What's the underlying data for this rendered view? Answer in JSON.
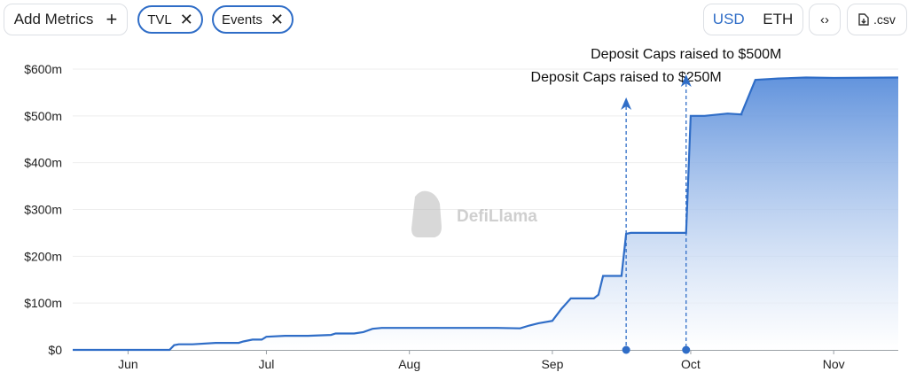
{
  "toolbar": {
    "add_metrics_label": "Add Metrics",
    "add_icon": "plus-icon",
    "chips": [
      {
        "label": "TVL",
        "remove_icon": "close-icon"
      },
      {
        "label": "Events",
        "remove_icon": "close-icon"
      }
    ],
    "currency": {
      "options": [
        "USD",
        "ETH"
      ],
      "selected": "USD"
    },
    "embed_icon": "code-icon",
    "csv_label": ".csv",
    "csv_icon": "download-file-icon"
  },
  "watermark": "DefiLlama",
  "colors": {
    "accent": "#2f6dc7",
    "line": "#2f6dc7",
    "area_top": "#5a8edb",
    "area_bottom": "#ffffff"
  },
  "chart_data": {
    "type": "area",
    "title": "",
    "xlabel": "",
    "ylabel": "",
    "x_ticks": [
      "Jun",
      "Jul",
      "Aug",
      "Sep",
      "Oct",
      "Nov"
    ],
    "y_ticks": [
      "$0",
      "$100m",
      "$200m",
      "$300m",
      "$400m",
      "$500m",
      "$600m"
    ],
    "ylim": [
      0,
      600
    ],
    "grid": true,
    "series": [
      {
        "x": [
          "2023-05-20",
          "2023-06-01",
          "2023-06-10",
          "2023-06-11",
          "2023-06-12",
          "2023-06-15",
          "2023-06-20",
          "2023-06-25",
          "2023-06-26",
          "2023-06-28",
          "2023-06-30",
          "2023-07-01",
          "2023-07-05",
          "2023-07-08",
          "2023-07-10",
          "2023-07-15",
          "2023-07-16",
          "2023-07-20",
          "2023-07-22",
          "2023-07-24",
          "2023-07-26",
          "2023-08-01",
          "2023-08-10",
          "2023-08-15",
          "2023-08-20",
          "2023-08-25",
          "2023-08-27",
          "2023-08-29",
          "2023-09-01",
          "2023-09-03",
          "2023-09-05",
          "2023-09-10",
          "2023-09-11",
          "2023-09-12",
          "2023-09-16",
          "2023-09-17",
          "2023-09-18",
          "2023-09-24",
          "2023-09-30",
          "2023-09-30",
          "2023-10-01",
          "2023-10-04",
          "2023-10-09",
          "2023-10-12",
          "2023-10-12",
          "2023-10-15",
          "2023-10-20",
          "2023-10-26",
          "2023-11-01",
          "2023-11-15"
        ],
        "y": [
          0,
          0,
          0,
          10,
          12,
          12,
          15,
          15,
          18,
          22,
          22,
          28,
          30,
          30,
          30,
          32,
          35,
          35,
          38,
          45,
          47,
          47,
          47,
          47,
          47,
          46,
          52,
          57,
          62,
          88,
          110,
          110,
          118,
          158,
          158,
          248,
          250,
          250,
          250,
          248,
          500,
          500,
          505,
          503,
          505,
          577,
          580,
          582,
          581,
          582
        ]
      }
    ],
    "events": [
      {
        "date": "2023-09-17",
        "label": "Deposit Caps raised to $250M",
        "marker": "arrow-up"
      },
      {
        "date": "2023-09-30",
        "label": "Deposit Caps raised to $500M",
        "marker": "arrow-up"
      }
    ]
  }
}
